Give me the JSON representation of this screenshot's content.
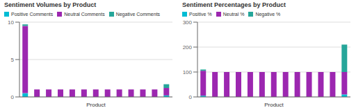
{
  "chart_data": [
    {
      "type": "bar",
      "title": "Sentiment Volumes by Product",
      "stacked": true,
      "categories": [
        null,
        null,
        null,
        null,
        null,
        null,
        null,
        null,
        null,
        null,
        null,
        null,
        null
      ],
      "series": [
        {
          "name": "Positive Comments",
          "color": "#00bcd4",
          "values": [
            0.5,
            0,
            0,
            0,
            0,
            0,
            0,
            0,
            0,
            0,
            0,
            0,
            0.2
          ]
        },
        {
          "name": "Neutral Comments",
          "color": "#9c27b0",
          "values": [
            9,
            1,
            1,
            1,
            1,
            1,
            1,
            1,
            1,
            1,
            1,
            1,
            1
          ]
        },
        {
          "name": "Negative Comments",
          "color": "#26a69a",
          "values": [
            0.2,
            0,
            0,
            0,
            0,
            0,
            0,
            0,
            0,
            0,
            0,
            0,
            0.5
          ]
        }
      ],
      "xlabel": "Product",
      "ylim": [
        0,
        10
      ],
      "yticks": [
        0,
        5,
        10
      ],
      "grid": true,
      "legend": "top",
      "tick_labels": "y"
    },
    {
      "type": "bar",
      "title": "Sentiment Percentages by Product",
      "stacked": true,
      "categories": [
        null,
        null,
        null,
        null,
        null,
        null,
        null,
        null,
        null,
        null,
        null,
        null,
        null
      ],
      "series": [
        {
          "name": "Positive %",
          "color": "#00bcd4",
          "values": [
            5,
            0,
            0,
            0,
            0,
            0,
            0,
            0,
            0,
            0,
            0,
            0,
            10
          ]
        },
        {
          "name": "Neutral %",
          "color": "#9c27b0",
          "values": [
            100,
            100,
            100,
            100,
            100,
            100,
            100,
            100,
            100,
            100,
            100,
            100,
            90
          ]
        },
        {
          "name": "Negative %",
          "color": "#26a69a",
          "values": [
            5,
            0,
            0,
            0,
            0,
            0,
            0,
            0,
            0,
            0,
            0,
            0,
            110
          ]
        }
      ],
      "xlabel": "Product",
      "ylim": [
        0,
        300
      ],
      "yticks": [
        0,
        100,
        200,
        300
      ],
      "grid": true,
      "legend": "top",
      "tick_labels": "y"
    }
  ]
}
